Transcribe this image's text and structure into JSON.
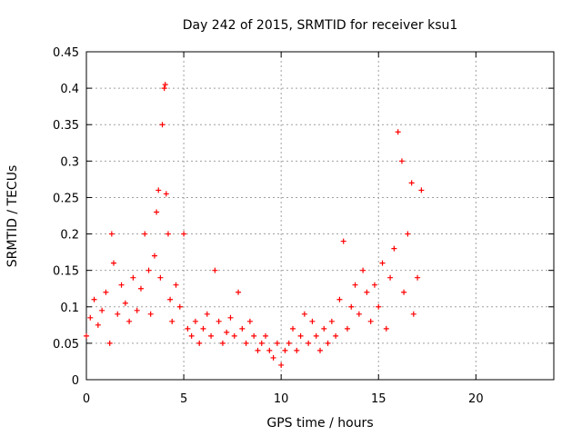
{
  "chart_data": {
    "type": "scatter",
    "title": "Day 242 of 2015, SRMTID for receiver ksu1",
    "xlabel": "GPS time / hours",
    "ylabel": "SRMTID / TECUs",
    "xlim": [
      0,
      24
    ],
    "ylim": [
      0,
      0.45
    ],
    "xticks": [
      0,
      5,
      10,
      15,
      20
    ],
    "xtick_labels": [
      "0",
      "5",
      "10",
      "15",
      "20"
    ],
    "yticks": [
      0,
      0.05,
      0.1,
      0.15,
      0.2,
      0.25,
      0.3,
      0.35,
      0.4,
      0.45
    ],
    "ytick_labels": [
      "0",
      "0.05",
      "0.1",
      "0.15",
      "0.2",
      "0.25",
      "0.3",
      "0.35",
      "0.4",
      "0.45"
    ],
    "grid": true,
    "marker": "+",
    "color": "#ff0000",
    "series": [
      {
        "name": "SRMTID",
        "points": [
          [
            0.0,
            0.06
          ],
          [
            0.2,
            0.085
          ],
          [
            0.4,
            0.11
          ],
          [
            0.6,
            0.075
          ],
          [
            0.8,
            0.095
          ],
          [
            1.0,
            0.12
          ],
          [
            1.2,
            0.05
          ],
          [
            1.3,
            0.2
          ],
          [
            1.4,
            0.16
          ],
          [
            1.6,
            0.09
          ],
          [
            1.8,
            0.13
          ],
          [
            2.0,
            0.105
          ],
          [
            2.2,
            0.08
          ],
          [
            2.4,
            0.14
          ],
          [
            2.6,
            0.095
          ],
          [
            2.8,
            0.125
          ],
          [
            3.0,
            0.2
          ],
          [
            3.2,
            0.15
          ],
          [
            3.3,
            0.09
          ],
          [
            3.5,
            0.17
          ],
          [
            3.6,
            0.23
          ],
          [
            3.7,
            0.26
          ],
          [
            3.8,
            0.14
          ],
          [
            3.9,
            0.35
          ],
          [
            4.0,
            0.4
          ],
          [
            4.05,
            0.405
          ],
          [
            4.1,
            0.255
          ],
          [
            4.2,
            0.2
          ],
          [
            4.3,
            0.11
          ],
          [
            4.4,
            0.08
          ],
          [
            4.6,
            0.13
          ],
          [
            4.8,
            0.1
          ],
          [
            5.0,
            0.2
          ],
          [
            5.2,
            0.07
          ],
          [
            5.4,
            0.06
          ],
          [
            5.6,
            0.08
          ],
          [
            5.8,
            0.05
          ],
          [
            6.0,
            0.07
          ],
          [
            6.2,
            0.09
          ],
          [
            6.4,
            0.06
          ],
          [
            6.6,
            0.15
          ],
          [
            6.8,
            0.08
          ],
          [
            7.0,
            0.05
          ],
          [
            7.2,
            0.065
          ],
          [
            7.4,
            0.085
          ],
          [
            7.6,
            0.06
          ],
          [
            7.8,
            0.12
          ],
          [
            8.0,
            0.07
          ],
          [
            8.2,
            0.05
          ],
          [
            8.4,
            0.08
          ],
          [
            8.6,
            0.06
          ],
          [
            8.8,
            0.04
          ],
          [
            9.0,
            0.05
          ],
          [
            9.2,
            0.06
          ],
          [
            9.4,
            0.04
          ],
          [
            9.6,
            0.03
          ],
          [
            9.8,
            0.05
          ],
          [
            10.0,
            0.02
          ],
          [
            10.2,
            0.04
          ],
          [
            10.4,
            0.05
          ],
          [
            10.6,
            0.07
          ],
          [
            10.8,
            0.04
          ],
          [
            11.0,
            0.06
          ],
          [
            11.2,
            0.09
          ],
          [
            11.4,
            0.05
          ],
          [
            11.6,
            0.08
          ],
          [
            11.8,
            0.06
          ],
          [
            12.0,
            0.04
          ],
          [
            12.2,
            0.07
          ],
          [
            12.4,
            0.05
          ],
          [
            12.6,
            0.08
          ],
          [
            12.8,
            0.06
          ],
          [
            13.0,
            0.11
          ],
          [
            13.2,
            0.19
          ],
          [
            13.4,
            0.07
          ],
          [
            13.6,
            0.1
          ],
          [
            13.8,
            0.13
          ],
          [
            14.0,
            0.09
          ],
          [
            14.2,
            0.15
          ],
          [
            14.4,
            0.12
          ],
          [
            14.6,
            0.08
          ],
          [
            14.8,
            0.13
          ],
          [
            15.0,
            0.1
          ],
          [
            15.2,
            0.16
          ],
          [
            15.4,
            0.07
          ],
          [
            15.6,
            0.14
          ],
          [
            15.8,
            0.18
          ],
          [
            16.0,
            0.34
          ],
          [
            16.2,
            0.3
          ],
          [
            16.3,
            0.12
          ],
          [
            16.5,
            0.2
          ],
          [
            16.7,
            0.27
          ],
          [
            16.8,
            0.09
          ],
          [
            17.0,
            0.14
          ],
          [
            17.2,
            0.26
          ]
        ]
      }
    ]
  }
}
